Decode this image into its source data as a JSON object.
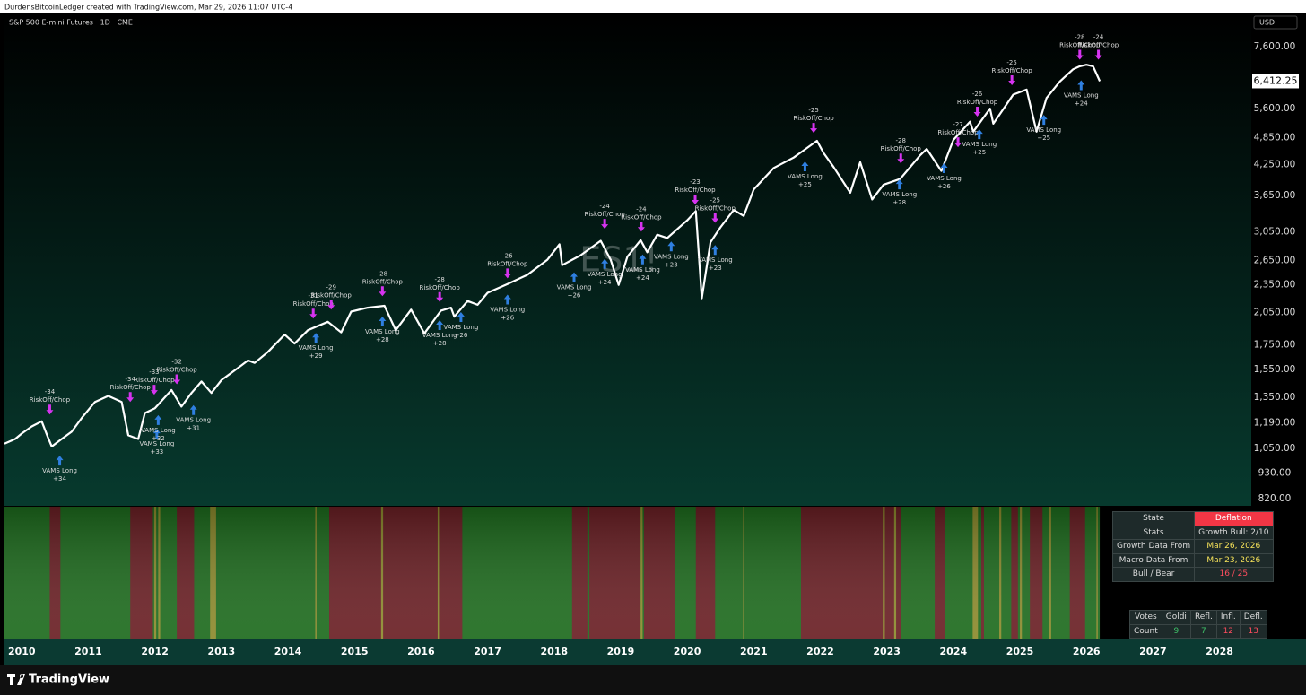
{
  "header": {
    "credit": "DurdensBitcoinLedger created with TradingView.com, Mar 29, 2026 11:07 UTC-4",
    "currency": "USD",
    "brand": "TradingView"
  },
  "chart_data": {
    "type": "line",
    "title": "S&P 500 E-mini Futures · 1D · CME",
    "watermark": "ES1!",
    "color": "#ffffff",
    "log_scale": true,
    "x": [
      2009.74,
      2009.9,
      2010.0,
      2010.15,
      2010.3,
      2010.38,
      2010.45,
      2010.6,
      2010.75,
      2010.9,
      2011.1,
      2011.3,
      2011.5,
      2011.6,
      2011.75,
      2011.85,
      2012.0,
      2012.25,
      2012.4,
      2012.55,
      2012.7,
      2012.85,
      2013.0,
      2013.3,
      2013.4,
      2013.5,
      2013.7,
      2013.95,
      2014.1,
      2014.3,
      2014.6,
      2014.8,
      2014.95,
      2015.2,
      2015.45,
      2015.62,
      2015.85,
      2016.05,
      2016.3,
      2016.45,
      2016.5,
      2016.7,
      2016.85,
      2017.0,
      2017.3,
      2017.6,
      2017.9,
      2018.08,
      2018.12,
      2018.4,
      2018.7,
      2018.85,
      2018.97,
      2019.1,
      2019.3,
      2019.4,
      2019.55,
      2019.7,
      2020.0,
      2020.13,
      2020.22,
      2020.35,
      2020.5,
      2020.7,
      2020.85,
      2021.0,
      2021.3,
      2021.6,
      2021.95,
      2022.05,
      2022.2,
      2022.45,
      2022.6,
      2022.78,
      2022.95,
      2023.2,
      2023.5,
      2023.6,
      2023.82,
      2024.0,
      2024.25,
      2024.3,
      2024.55,
      2024.6,
      2024.9,
      2025.1,
      2025.25,
      2025.4,
      2025.6,
      2025.8,
      2025.9,
      2026.0,
      2026.1,
      2026.2
    ],
    "values": [
      1075,
      1100,
      1130,
      1170,
      1200,
      1120,
      1060,
      1100,
      1140,
      1220,
      1320,
      1360,
      1320,
      1120,
      1100,
      1250,
      1280,
      1400,
      1290,
      1380,
      1460,
      1380,
      1470,
      1580,
      1620,
      1600,
      1690,
      1840,
      1760,
      1880,
      1960,
      1860,
      2060,
      2100,
      2120,
      1880,
      2080,
      1850,
      2070,
      2100,
      2010,
      2170,
      2130,
      2260,
      2360,
      2470,
      2660,
      2870,
      2590,
      2720,
      2920,
      2660,
      2350,
      2700,
      2930,
      2760,
      3010,
      2960,
      3230,
      3380,
      2200,
      2900,
      3120,
      3400,
      3300,
      3760,
      4180,
      4400,
      4780,
      4500,
      4200,
      3700,
      4300,
      3580,
      3850,
      3960,
      4450,
      4590,
      4120,
      4800,
      5250,
      5000,
      5600,
      5200,
      6000,
      6150,
      5000,
      5900,
      6400,
      6800,
      6900,
      6950,
      6900,
      6412.25
    ],
    "last_price": {
      "value": 6412.25,
      "label": "6,412.25"
    },
    "xlim": [
      2009.74,
      2028.41
    ],
    "xticks": [
      2010,
      2011,
      2012,
      2013,
      2014,
      2015,
      2016,
      2017,
      2018,
      2019,
      2020,
      2021,
      2022,
      2023,
      2024,
      2025,
      2026,
      2027,
      2028
    ],
    "ylim": [
      795,
      8950
    ],
    "yticks": [
      {
        "value": 820,
        "label": "820.00"
      },
      {
        "value": 930,
        "label": "930.00"
      },
      {
        "value": 1050,
        "label": "1,050.00"
      },
      {
        "value": 1190,
        "label": "1,190.00"
      },
      {
        "value": 1350,
        "label": "1,350.00"
      },
      {
        "value": 1550,
        "label": "1,550.00"
      },
      {
        "value": 1750,
        "label": "1,750.00"
      },
      {
        "value": 2050,
        "label": "2,050.00"
      },
      {
        "value": 2350,
        "label": "2,350.00"
      },
      {
        "value": 2650,
        "label": "2,650.00"
      },
      {
        "value": 3050,
        "label": "3,050.00"
      },
      {
        "value": 3650,
        "label": "3,650.00"
      },
      {
        "value": 4250,
        "label": "4,250.00"
      },
      {
        "value": 4850,
        "label": "4,850.00"
      },
      {
        "value": 5600,
        "label": "5,600.00"
      },
      {
        "value": 7600,
        "label": "7,600.00"
      }
    ],
    "risk_off": {
      "name": "RiskOff/Chop",
      "color": "#d633f0",
      "x": [
        2010.42,
        2011.63,
        2011.99,
        2012.33,
        2014.38,
        2014.65,
        2015.42,
        2016.28,
        2017.3,
        2018.76,
        2019.31,
        2020.12,
        2020.42,
        2021.9,
        2023.21,
        2024.07,
        2024.36,
        2024.88,
        2025.9,
        2026.18
      ],
      "y": [
        1241,
        1320,
        1368,
        1440,
        1991,
        2080,
        2223,
        2160,
        2427,
        3098,
        3055,
        3493,
        3190,
        4970,
        4275,
        4630,
        5385,
        6285,
        7130,
        7130
      ],
      "scores": [
        "-34",
        "-34",
        "-33",
        "-32",
        "-31",
        "-29",
        "-28",
        "-28",
        "-26",
        "-24",
        "-24",
        "-23",
        "-25",
        "-25",
        "-28",
        "-27",
        "-26",
        "-25",
        "-28",
        "-24"
      ]
    },
    "vams_long": {
      "name": "VAMS Long",
      "color": "#2f7fe0",
      "x": [
        2010.57,
        2012.03,
        2012.05,
        2012.58,
        2014.42,
        2015.42,
        2016.28,
        2016.6,
        2017.3,
        2018.3,
        2018.76,
        2019.33,
        2019.76,
        2020.42,
        2021.77,
        2023.19,
        2023.86,
        2024.39,
        2025.36,
        2025.92
      ],
      "y": [
        1013,
        1157,
        1237,
        1300,
        1855,
        2010,
        1975,
        2055,
        2240,
        2500,
        2670,
        2730,
        2910,
        2860,
        4318,
        3950,
        4280,
        5060,
        5430,
        6440
      ],
      "scores": [
        "+34",
        "+33",
        "+32",
        "+31",
        "+29",
        "+28",
        "+28",
        "+26",
        "+26",
        "+26",
        "+24",
        "+24",
        "+23",
        "+23",
        "+25",
        "+28",
        "+26",
        "+25",
        "+25",
        "+24"
      ]
    },
    "regime_background": "#1d6b1d",
    "regime_bands": [
      {
        "start": 2010.42,
        "end": 2010.58,
        "color": "#6a1f24"
      },
      {
        "start": 2011.63,
        "end": 2011.97,
        "color": "#6a1f24"
      },
      {
        "start": 2011.99,
        "end": 2012.02,
        "color": "#8c8a2c"
      },
      {
        "start": 2012.05,
        "end": 2012.08,
        "color": "#8c8a2c"
      },
      {
        "start": 2012.33,
        "end": 2012.59,
        "color": "#6a1f24"
      },
      {
        "start": 2012.83,
        "end": 2012.92,
        "color": "#8c8a2c"
      },
      {
        "start": 2014.41,
        "end": 2014.43,
        "color": "#8c8a2c"
      },
      {
        "start": 2014.62,
        "end": 2016.62,
        "color": "#6a1f24"
      },
      {
        "start": 2015.4,
        "end": 2015.43,
        "color": "#8c8a2c"
      },
      {
        "start": 2016.25,
        "end": 2016.27,
        "color": "#8c8a2c"
      },
      {
        "start": 2018.27,
        "end": 2018.5,
        "color": "#6a1f24"
      },
      {
        "start": 2018.53,
        "end": 2019.29,
        "color": "#6a1f24"
      },
      {
        "start": 2019.3,
        "end": 2019.33,
        "color": "#8c8a2c"
      },
      {
        "start": 2019.35,
        "end": 2019.81,
        "color": "#6a1f24"
      },
      {
        "start": 2020.13,
        "end": 2020.42,
        "color": "#6a1f24"
      },
      {
        "start": 2020.84,
        "end": 2020.86,
        "color": "#8c8a2c"
      },
      {
        "start": 2021.71,
        "end": 2023.22,
        "color": "#6a1f24"
      },
      {
        "start": 2022.94,
        "end": 2022.97,
        "color": "#8c8a2c"
      },
      {
        "start": 2023.11,
        "end": 2023.14,
        "color": "#8c8a2c"
      },
      {
        "start": 2023.72,
        "end": 2023.88,
        "color": "#6a1f24"
      },
      {
        "start": 2024.29,
        "end": 2024.37,
        "color": "#8c8a2c"
      },
      {
        "start": 2024.42,
        "end": 2024.46,
        "color": "#6a1f24"
      },
      {
        "start": 2024.69,
        "end": 2024.72,
        "color": "#8c8a2c"
      },
      {
        "start": 2024.87,
        "end": 2024.97,
        "color": "#6a1f24"
      },
      {
        "start": 2025.0,
        "end": 2025.03,
        "color": "#8c8a2c"
      },
      {
        "start": 2025.15,
        "end": 2025.34,
        "color": "#6a1f24"
      },
      {
        "start": 2025.44,
        "end": 2025.47,
        "color": "#8c8a2c"
      },
      {
        "start": 2025.75,
        "end": 2025.98,
        "color": "#6a1f24"
      },
      {
        "start": 2026.15,
        "end": 2026.17,
        "color": "#8c8a2c"
      }
    ]
  },
  "regime_table": {
    "rows": [
      [
        "State",
        "Deflation"
      ],
      [
        "Stats",
        "Growth Bull: 2/10"
      ],
      [
        "Growth Data From",
        "Mar 26, 2026"
      ],
      [
        "Macro Data From",
        "Mar 23, 2026"
      ],
      [
        "Bull / Bear",
        "16 / 25"
      ]
    ]
  },
  "votes_table": {
    "header": [
      "Votes",
      "Goldi",
      "Refl.",
      "Infl.",
      "Defl."
    ],
    "row": [
      "Count",
      "9",
      "7",
      "12",
      "13"
    ]
  }
}
